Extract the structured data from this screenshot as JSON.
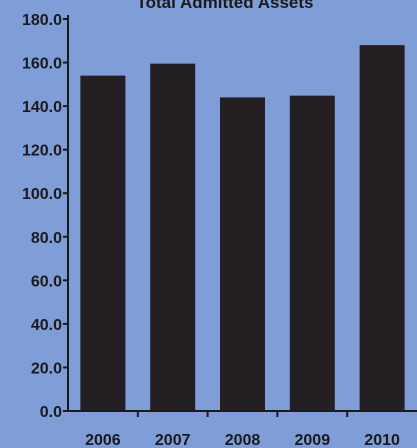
{
  "chart_data": {
    "type": "bar",
    "title": "Total Admitted Assets",
    "categories": [
      "2006",
      "2007",
      "2008",
      "2009",
      "2010"
    ],
    "values": [
      154.0,
      159.5,
      144.0,
      144.8,
      168.0
    ],
    "ylim": [
      0,
      180
    ],
    "yticks": [
      "0.0",
      "20.0",
      "40.0",
      "60.0",
      "80.0",
      "100.0",
      "120.0",
      "140.0",
      "160.0",
      "180.0"
    ],
    "grid": false,
    "legend": "none",
    "colors": {
      "background": "#7f9dd6",
      "bar": "#231f22",
      "axis": "#1b1b1b",
      "text": "#1b1b1b"
    }
  }
}
